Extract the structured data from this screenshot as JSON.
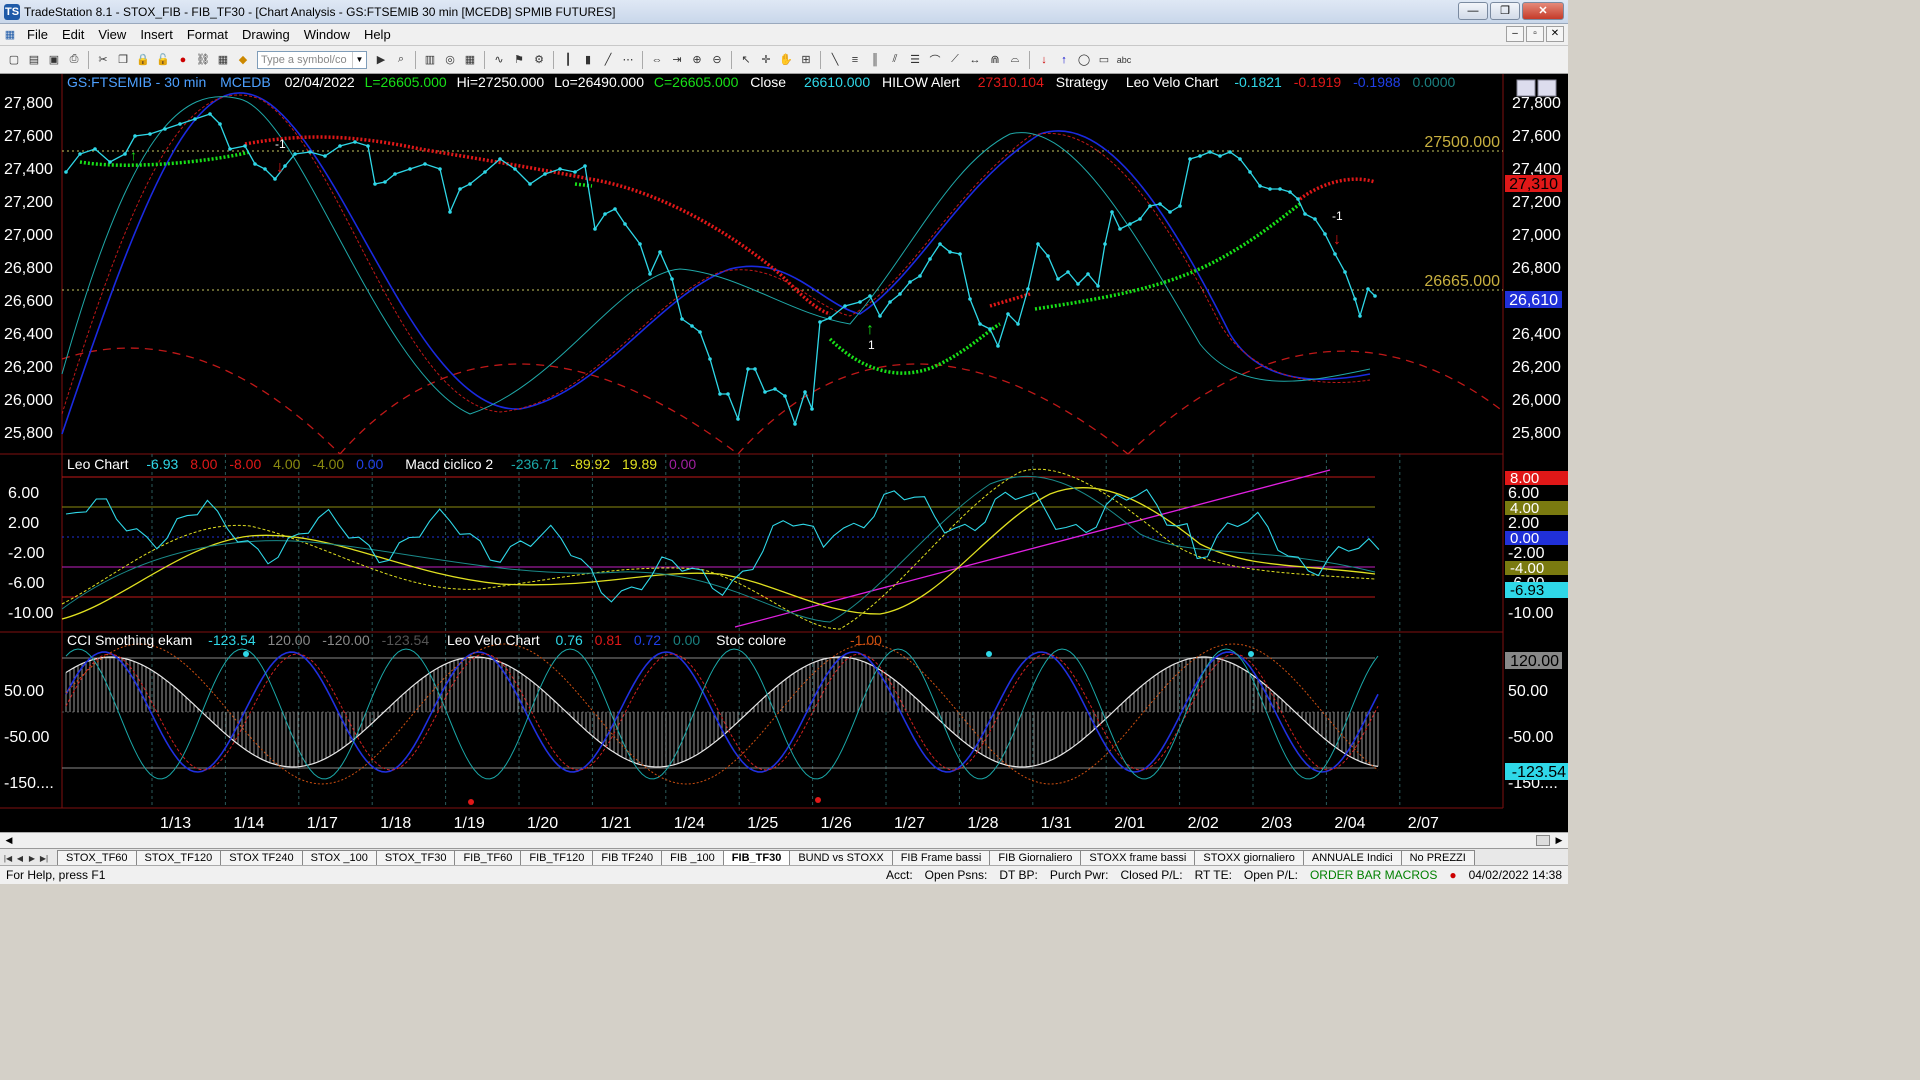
{
  "window": {
    "title": "TradeStation 8.1 - STOX_FIB - FIB_TF30 - [Chart Analysis - GS:FTSEMIB  30 min  [MCEDB] SPMIB FUTURES]",
    "app_icon": "TS"
  },
  "menu": [
    "File",
    "Edit",
    "View",
    "Insert",
    "Format",
    "Drawing",
    "Window",
    "Help"
  ],
  "toolbar": {
    "symbol_placeholder": "Type a symbol/co",
    "text_tool": "abc"
  },
  "chart": {
    "price_header": {
      "symbol": "GS:FTSEMIB - 30 min",
      "source": "MCEDB",
      "date": "02/04/2022",
      "last": "L=26605.000",
      "high": "Hi=27250.000",
      "low": "Lo=26490.000",
      "close": "C=26605.000",
      "close_label": "Close",
      "close_val": "26610.000",
      "hilow": "HILOW Alert",
      "hilow_val": "27310.104",
      "strategy": "Strategy",
      "leo_velo": "Leo Velo Chart",
      "v1": "-0.1821",
      "v2": "-0.1919",
      "v3": "-0.1988",
      "v4": "0.0000"
    },
    "price_axis": [
      "27,800",
      "27,600",
      "27,400",
      "27,200",
      "27,000",
      "26,800",
      "26,600",
      "26,400",
      "26,200",
      "26,000",
      "25,800"
    ],
    "price_marks": {
      "level_hi": "27500.000",
      "level_lo": "26665.000",
      "tag_red": "27,310",
      "tag_blue": "26,610"
    },
    "signals": {
      "sell1": "-1",
      "sell2": "-1",
      "buy1": "1"
    },
    "leo_header": {
      "name": "Leo Chart",
      "v1": "-6.93",
      "v2": "8.00",
      "v3": "-8.00",
      "v4": "4.00",
      "v5": "-4.00",
      "v6": "0.00",
      "macd": "Macd ciclico 2",
      "m1": "-236.71",
      "m2": "-89.92",
      "m3": "19.89",
      "m4": "0.00"
    },
    "leo_axis": [
      "6.00",
      "2.00",
      "-2.00",
      "-6.00",
      "-10.00"
    ],
    "leo_tags": {
      "t8": "8.00",
      "t6": "6.00",
      "t4": "4.00",
      "t2": "2.00",
      "t0": "0.00",
      "tm2": "-2.00",
      "tm4": "-4.00",
      "tm693": "-6.93",
      "tm10": "-10.00"
    },
    "cci_header": {
      "name": "CCI Smothing ekam",
      "v1": "-123.54",
      "v2": "120.00",
      "v3": "-120.00",
      "v4": "-123.54",
      "velo": "Leo Velo Chart",
      "w1": "0.76",
      "w2": "0.81",
      "w3": "0.72",
      "w4": "0.00",
      "stoc": "Stoc colore",
      "s1": "-1.00"
    },
    "cci_axis": [
      "50.00",
      "-50.00",
      "-150...."
    ],
    "cci_tags": {
      "t120": "120.00",
      "tm123": "-123.54"
    },
    "dates": [
      "1/13",
      "1/14",
      "1/17",
      "1/18",
      "1/19",
      "1/20",
      "1/21",
      "1/24",
      "1/25",
      "1/26",
      "1/27",
      "1/28",
      "1/31",
      "2/01",
      "2/02",
      "2/03",
      "2/04",
      "2/07"
    ]
  },
  "tabs": [
    "STOX_TF60",
    "STOX_TF120",
    "STOX TF240",
    "STOX _100",
    "STOX_TF30",
    "FIB_TF60",
    "FIB_TF120",
    "FIB TF240",
    "FIB _100",
    "FIB_TF30",
    "BUND vs STOXX",
    "FIB Frame bassi",
    "FIB Giornaliero",
    "STOXX frame bassi",
    "STOXX giornaliero",
    "ANNUALE Indici",
    "No PREZZI"
  ],
  "active_tab": "FIB_TF30",
  "status": {
    "help": "For Help, press F1",
    "acct": "Acct:",
    "open_psns": "Open Psns:",
    "dt_bp": "DT BP:",
    "purch_pwr": "Purch Pwr:",
    "closed_pl": "Closed P/L:",
    "rt_te": "RT TE:",
    "open_pl": "Open P/L:",
    "order_bar": "ORDER BAR  MACROS",
    "datetime": "04/02/2022 14:38"
  },
  "colors": {
    "bg": "#000000",
    "price": "#2fd8e8",
    "red": "#e01818",
    "green": "#18e018",
    "blue": "#2030d8",
    "yellow": "#e0e020",
    "magenta": "#e020e0"
  }
}
